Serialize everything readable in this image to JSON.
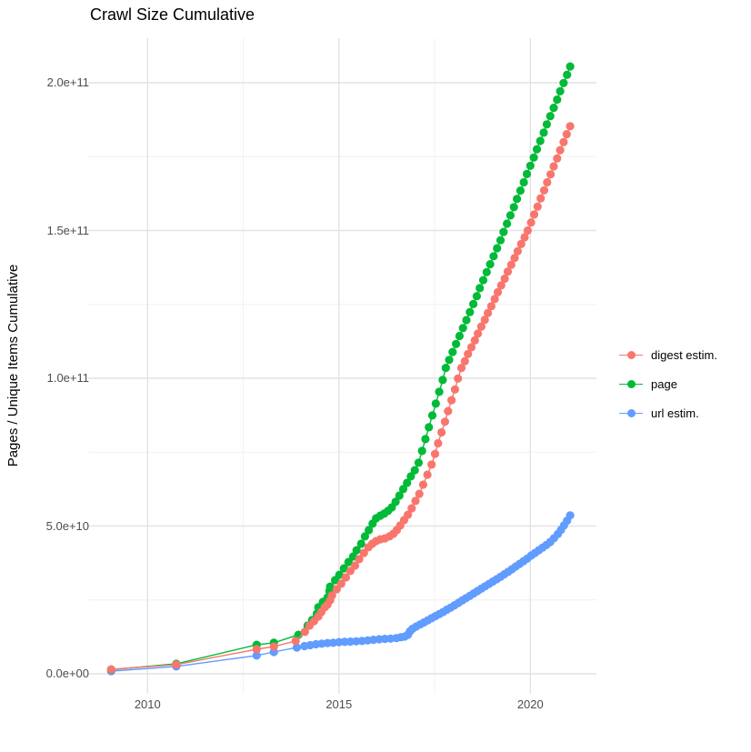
{
  "title": "Crawl Size Cumulative",
  "y_axis": {
    "label": "Pages / Unique Items Cumulative",
    "ticks": [
      "0.0e+00",
      "5.0e+10",
      "1.0e+11",
      "1.5e+11",
      "2.0e+11"
    ]
  },
  "x_axis": {
    "ticks": [
      "2010",
      "2015",
      "2020"
    ]
  },
  "legend": {
    "items": [
      {
        "label": "digest estim.",
        "color": "#F8766D"
      },
      {
        "label": "page",
        "color": "#00BA38"
      },
      {
        "label": "url estim.",
        "color": "#619CFF"
      }
    ]
  },
  "style": {
    "background": "#FFFFFF",
    "major_gridline_color": "#E3E3E3",
    "minor_gridline_color": "#F0F0F0",
    "tick_label_color": "#4D4D4D",
    "title_color": "#000000"
  },
  "chart_data": {
    "type": "scatter",
    "title": "Crawl Size Cumulative",
    "xlabel": "",
    "ylabel": "Pages / Unique Items Cumulative",
    "x_domain": [
      2008.4,
      2021.7
    ],
    "y_domain": [
      0,
      215000000000.0
    ],
    "x_major_ticks": [
      2010,
      2015,
      2020
    ],
    "x_minor_ticks": [
      2012.5,
      2017.5
    ],
    "y_major_ticks": [
      0,
      50000000000.0,
      100000000000.0,
      150000000000.0,
      200000000000.0
    ],
    "y_minor_ticks": [
      25000000000.0,
      75000000000.0,
      125000000000.0,
      175000000000.0
    ],
    "grid": true,
    "legend_position": "right",
    "series": [
      {
        "name": "digest estim.",
        "color": "#F8766D",
        "points": [
          [
            2009.05,
            1500000000.0
          ],
          [
            2010.75,
            3100000000.0
          ],
          [
            2012.85,
            8300000000.0
          ],
          [
            2013.3,
            9200000000.0
          ],
          [
            2013.87,
            11100000000.0
          ],
          [
            2014.11,
            14200000000.0
          ],
          [
            2014.23,
            16300000000.0
          ],
          [
            2014.35,
            17800000000.0
          ],
          [
            2014.46,
            19400000000.0
          ],
          [
            2014.54,
            20900000000.0
          ],
          [
            2014.63,
            22500000000.0
          ],
          [
            2014.7,
            23400000000.0
          ],
          [
            2014.77,
            24900000000.0
          ],
          [
            2014.82,
            26500000000.0
          ],
          [
            2014.94,
            28600000000.0
          ],
          [
            2015.06,
            30500000000.0
          ],
          [
            2015.18,
            32600000000.0
          ],
          [
            2015.3,
            34800000000.0
          ],
          [
            2015.42,
            36600000000.0
          ],
          [
            2015.53,
            38800000000.0
          ],
          [
            2015.65,
            40900000000.0
          ],
          [
            2015.77,
            42800000000.0
          ],
          [
            2015.87,
            44000000000.0
          ],
          [
            2015.97,
            44900000000.0
          ],
          [
            2016.08,
            45500000000.0
          ],
          [
            2016.2,
            45800000000.0
          ],
          [
            2016.32,
            46500000000.0
          ],
          [
            2016.42,
            47400000000.0
          ],
          [
            2016.51,
            48600000000.0
          ],
          [
            2016.6,
            50200000000.0
          ],
          [
            2016.7,
            52000000000.0
          ],
          [
            2016.8,
            53800000000.0
          ],
          [
            2016.9,
            56000000000.0
          ],
          [
            2017.0,
            58500000000.0
          ],
          [
            2017.1,
            60900000000.0
          ],
          [
            2017.2,
            64000000000.0
          ],
          [
            2017.31,
            67400000000.0
          ],
          [
            2017.42,
            70800000000.0
          ],
          [
            2017.51,
            74400000000.0
          ],
          [
            2017.59,
            78000000000.0
          ],
          [
            2017.68,
            81700000000.0
          ],
          [
            2017.77,
            85300000000.0
          ],
          [
            2017.85,
            88900000000.0
          ],
          [
            2017.94,
            92600000000.0
          ],
          [
            2018.03,
            96200000000.0
          ],
          [
            2018.11,
            99900000000.0
          ],
          [
            2018.2,
            103500000000.0
          ],
          [
            2018.29,
            105800000000.0
          ],
          [
            2018.37,
            108200000000.0
          ],
          [
            2018.46,
            110500000000.0
          ],
          [
            2018.55,
            112800000000.0
          ],
          [
            2018.63,
            115100000000.0
          ],
          [
            2018.72,
            117500000000.0
          ],
          [
            2018.81,
            119800000000.0
          ],
          [
            2018.89,
            122100000000.0
          ],
          [
            2018.98,
            124400000000.0
          ],
          [
            2019.07,
            126800000000.0
          ],
          [
            2019.15,
            129100000000.0
          ],
          [
            2019.24,
            131400000000.0
          ],
          [
            2019.33,
            133700000000.0
          ],
          [
            2019.41,
            136100000000.0
          ],
          [
            2019.5,
            138400000000.0
          ],
          [
            2019.59,
            140700000000.0
          ],
          [
            2019.67,
            143000000000.0
          ],
          [
            2019.76,
            145400000000.0
          ],
          [
            2019.85,
            147700000000.0
          ],
          [
            2019.93,
            150000000000.0
          ],
          [
            2020.02,
            152700000000.0
          ],
          [
            2020.1,
            155400000000.0
          ],
          [
            2020.19,
            158100000000.0
          ],
          [
            2020.27,
            160900000000.0
          ],
          [
            2020.36,
            163600000000.0
          ],
          [
            2020.44,
            166300000000.0
          ],
          [
            2020.53,
            169000000000.0
          ],
          [
            2020.61,
            171700000000.0
          ],
          [
            2020.7,
            174400000000.0
          ],
          [
            2020.78,
            177200000000.0
          ],
          [
            2020.87,
            179900000000.0
          ],
          [
            2020.95,
            182600000000.0
          ],
          [
            2021.04,
            185300000000.0
          ]
        ]
      },
      {
        "name": "page",
        "color": "#00BA38",
        "points": [
          [
            2009.05,
            1400000000.0
          ],
          [
            2010.75,
            3400000000.0
          ],
          [
            2012.85,
            9800000000.0
          ],
          [
            2013.3,
            10500000000.0
          ],
          [
            2013.94,
            13200000000.0
          ],
          [
            2014.18,
            16300000000.0
          ],
          [
            2014.3,
            18200000000.0
          ],
          [
            2014.42,
            20300000000.0
          ],
          [
            2014.46,
            22500000000.0
          ],
          [
            2014.58,
            24300000000.0
          ],
          [
            2014.7,
            25800000000.0
          ],
          [
            2014.75,
            28000000000.0
          ],
          [
            2014.77,
            29500000000.0
          ],
          [
            2014.9,
            31700000000.0
          ],
          [
            2015.01,
            33500000000.0
          ],
          [
            2015.13,
            35700000000.0
          ],
          [
            2015.25,
            37800000000.0
          ],
          [
            2015.37,
            39700000000.0
          ],
          [
            2015.46,
            41800000000.0
          ],
          [
            2015.58,
            44000000000.0
          ],
          [
            2015.68,
            46500000000.0
          ],
          [
            2015.78,
            48600000000.0
          ],
          [
            2015.88,
            50800000000.0
          ],
          [
            2015.97,
            52600000000.0
          ],
          [
            2016.08,
            53500000000.0
          ],
          [
            2016.18,
            54200000000.0
          ],
          [
            2016.28,
            55100000000.0
          ],
          [
            2016.38,
            56300000000.0
          ],
          [
            2016.48,
            58200000000.0
          ],
          [
            2016.58,
            60300000000.0
          ],
          [
            2016.68,
            62500000000.0
          ],
          [
            2016.78,
            64600000000.0
          ],
          [
            2016.88,
            66800000000.0
          ],
          [
            2016.98,
            68900000000.0
          ],
          [
            2017.08,
            71400000000.0
          ],
          [
            2017.17,
            75400000000.0
          ],
          [
            2017.26,
            79400000000.0
          ],
          [
            2017.35,
            83400000000.0
          ],
          [
            2017.44,
            87400000000.0
          ],
          [
            2017.53,
            91400000000.0
          ],
          [
            2017.62,
            95400000000.0
          ],
          [
            2017.71,
            99400000000.0
          ],
          [
            2017.79,
            103500000000.0
          ],
          [
            2017.88,
            106200000000.0
          ],
          [
            2017.97,
            108900000000.0
          ],
          [
            2018.06,
            111600000000.0
          ],
          [
            2018.15,
            114300000000.0
          ],
          [
            2018.24,
            117000000000.0
          ],
          [
            2018.33,
            119700000000.0
          ],
          [
            2018.42,
            122400000000.0
          ],
          [
            2018.51,
            125100000000.0
          ],
          [
            2018.6,
            127800000000.0
          ],
          [
            2018.68,
            130500000000.0
          ],
          [
            2018.77,
            133200000000.0
          ],
          [
            2018.86,
            135900000000.0
          ],
          [
            2018.95,
            138600000000.0
          ],
          [
            2019.04,
            141300000000.0
          ],
          [
            2019.13,
            144000000000.0
          ],
          [
            2019.22,
            146700000000.0
          ],
          [
            2019.3,
            149500000000.0
          ],
          [
            2019.39,
            152300000000.0
          ],
          [
            2019.48,
            155100000000.0
          ],
          [
            2019.57,
            157900000000.0
          ],
          [
            2019.65,
            160700000000.0
          ],
          [
            2019.74,
            163500000000.0
          ],
          [
            2019.83,
            166300000000.0
          ],
          [
            2019.91,
            169100000000.0
          ],
          [
            2020.0,
            171900000000.0
          ],
          [
            2020.09,
            174700000000.0
          ],
          [
            2020.17,
            177500000000.0
          ],
          [
            2020.26,
            180300000000.0
          ],
          [
            2020.35,
            183100000000.0
          ],
          [
            2020.43,
            185900000000.0
          ],
          [
            2020.52,
            188700000000.0
          ],
          [
            2020.61,
            191500000000.0
          ],
          [
            2020.7,
            194300000000.0
          ],
          [
            2020.78,
            197100000000.0
          ],
          [
            2020.87,
            199900000000.0
          ],
          [
            2020.96,
            202700000000.0
          ],
          [
            2021.04,
            205500000000.0
          ]
        ]
      },
      {
        "name": "url estim.",
        "color": "#619CFF",
        "points": [
          [
            2009.05,
            900000000.0
          ],
          [
            2010.75,
            2500000000.0
          ],
          [
            2012.85,
            6200000000.0
          ],
          [
            2013.3,
            7400000000.0
          ],
          [
            2013.9,
            8900000000.0
          ],
          [
            2014.1,
            9400000000.0
          ],
          [
            2014.25,
            9700000000.0
          ],
          [
            2014.4,
            10000000000.0
          ],
          [
            2014.55,
            10200000000.0
          ],
          [
            2014.7,
            10400000000.0
          ],
          [
            2014.85,
            10500000000.0
          ],
          [
            2015.0,
            10700000000.0
          ],
          [
            2015.15,
            10800000000.0
          ],
          [
            2015.3,
            10900000000.0
          ],
          [
            2015.45,
            11000000000.0
          ],
          [
            2015.6,
            11100000000.0
          ],
          [
            2015.75,
            11300000000.0
          ],
          [
            2015.9,
            11500000000.0
          ],
          [
            2016.05,
            11700000000.0
          ],
          [
            2016.2,
            11800000000.0
          ],
          [
            2016.35,
            11900000000.0
          ],
          [
            2016.5,
            12100000000.0
          ],
          [
            2016.62,
            12400000000.0
          ],
          [
            2016.72,
            12600000000.0
          ],
          [
            2016.8,
            13200000000.0
          ],
          [
            2016.85,
            14300000000.0
          ],
          [
            2016.92,
            15200000000.0
          ],
          [
            2017.02,
            16000000000.0
          ],
          [
            2017.12,
            16700000000.0
          ],
          [
            2017.22,
            17400000000.0
          ],
          [
            2017.32,
            18100000000.0
          ],
          [
            2017.42,
            18800000000.0
          ],
          [
            2017.52,
            19500000000.0
          ],
          [
            2017.62,
            20200000000.0
          ],
          [
            2017.72,
            20900000000.0
          ],
          [
            2017.82,
            21700000000.0
          ],
          [
            2017.92,
            22400000000.0
          ],
          [
            2018.02,
            23200000000.0
          ],
          [
            2018.12,
            24000000000.0
          ],
          [
            2018.22,
            24800000000.0
          ],
          [
            2018.32,
            25600000000.0
          ],
          [
            2018.42,
            26400000000.0
          ],
          [
            2018.52,
            27200000000.0
          ],
          [
            2018.62,
            28000000000.0
          ],
          [
            2018.72,
            28800000000.0
          ],
          [
            2018.82,
            29600000000.0
          ],
          [
            2018.92,
            30400000000.0
          ],
          [
            2019.02,
            31200000000.0
          ],
          [
            2019.12,
            32000000000.0
          ],
          [
            2019.22,
            32800000000.0
          ],
          [
            2019.32,
            33700000000.0
          ],
          [
            2019.42,
            34500000000.0
          ],
          [
            2019.52,
            35400000000.0
          ],
          [
            2019.62,
            36300000000.0
          ],
          [
            2019.72,
            37200000000.0
          ],
          [
            2019.82,
            38100000000.0
          ],
          [
            2019.92,
            39000000000.0
          ],
          [
            2020.02,
            40000000000.0
          ],
          [
            2020.12,
            40900000000.0
          ],
          [
            2020.22,
            41800000000.0
          ],
          [
            2020.32,
            42700000000.0
          ],
          [
            2020.42,
            43600000000.0
          ],
          [
            2020.52,
            44600000000.0
          ],
          [
            2020.62,
            45900000000.0
          ],
          [
            2020.72,
            47300000000.0
          ],
          [
            2020.8,
            48700000000.0
          ],
          [
            2020.88,
            50200000000.0
          ],
          [
            2020.96,
            51800000000.0
          ],
          [
            2021.04,
            53600000000.0
          ]
        ]
      }
    ]
  }
}
